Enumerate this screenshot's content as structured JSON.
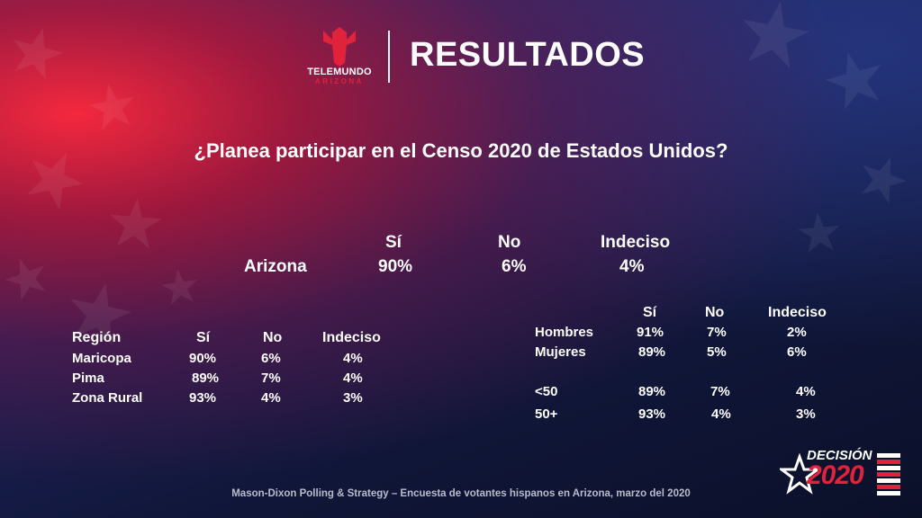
{
  "header": {
    "logo_text": "TELEMUNDO",
    "logo_sub": "ARIZONA",
    "title": "RESULTADOS"
  },
  "question": "¿Planea participar en el Censo 2020 de Estados Unidos?",
  "state": {
    "headers": [
      "Sí",
      "No",
      "Indeciso"
    ],
    "label": "Arizona",
    "values": [
      "90%",
      "6%",
      "4%"
    ]
  },
  "region": {
    "headers": [
      "Región",
      "Sí",
      "No",
      "Indeciso"
    ],
    "rows": [
      {
        "label": "Maricopa",
        "values": [
          "90%",
          "6%",
          "4%"
        ]
      },
      {
        "label": "Pima",
        "values": [
          "89%",
          "7%",
          "4%"
        ]
      },
      {
        "label": "Zona Rural",
        "values": [
          "93%",
          "4%",
          "3%"
        ]
      }
    ]
  },
  "demo": {
    "headers": [
      "Sí",
      "No",
      "Indeciso"
    ],
    "rows": [
      {
        "label": "Hombres",
        "values": [
          "91%",
          "7%",
          "2%"
        ]
      },
      {
        "label": "Mujeres",
        "values": [
          "89%",
          "5%",
          "6%"
        ]
      },
      {
        "label": "<50",
        "values": [
          "89%",
          "7%",
          "4%"
        ]
      },
      {
        "label": "50+",
        "values": [
          "93%",
          "4%",
          "3%"
        ]
      }
    ]
  },
  "badge": {
    "line1": "DECISIÓN",
    "line2": "2020"
  },
  "footer": "Mason-Dixon  Polling & Strategy – Encuesta de votantes hispanos en Arizona, marzo del 2020",
  "colors": {
    "accent_red": "#e0223a",
    "bg_blue": "#1b2258"
  }
}
